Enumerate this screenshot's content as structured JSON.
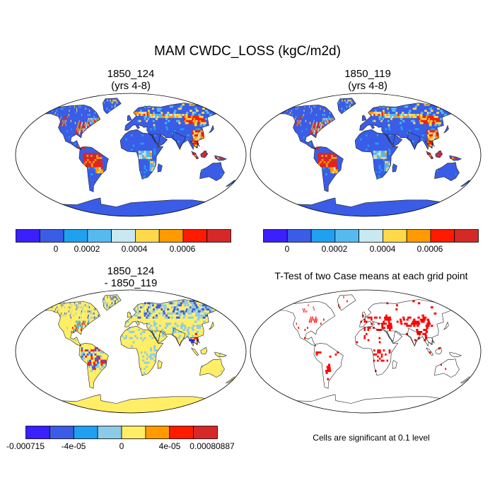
{
  "title": "MAM CWDC_LOSS (kgC/m2d)",
  "panels": {
    "top_left": {
      "title_line1": "1850_124",
      "title_line2": "(yrs 4-8)"
    },
    "top_right": {
      "title_line1": "1850_119",
      "title_line2": "(yrs 4-8)"
    },
    "bottom_left": {
      "title_line1": "1850_124",
      "title_line2": "- 1850_119"
    },
    "bottom_right": {
      "title_line1": "T-Test of two Case means at each grid point"
    }
  },
  "colorbar_abs": {
    "colors": [
      "#3b1fff",
      "#3a5ce6",
      "#1fa0f0",
      "#55baf0",
      "#c8e8f2",
      "#ffd94a",
      "#ff9a00",
      "#ff1a00",
      "#d62828"
    ],
    "labels": [
      "0",
      "0.0002",
      "0.0004",
      "0.0006"
    ]
  },
  "colorbar_diff": {
    "colors": [
      "#3b1fff",
      "#3a5ce6",
      "#1fa0f0",
      "#8ccbe8",
      "#ffee66",
      "#ff9a00",
      "#ff1a00",
      "#d62828"
    ],
    "labels": [
      "-0.000715",
      "-4e-05",
      "0",
      "4e-05",
      "0.00080887"
    ]
  },
  "colors": {
    "ocean": "#ffffff",
    "coastline": "#222222",
    "land_abs": "#3a5ce6",
    "land_diff": "#ffee66",
    "significant": "#ff0000"
  },
  "significance_note": "Cells are significant at 0.1 level"
}
